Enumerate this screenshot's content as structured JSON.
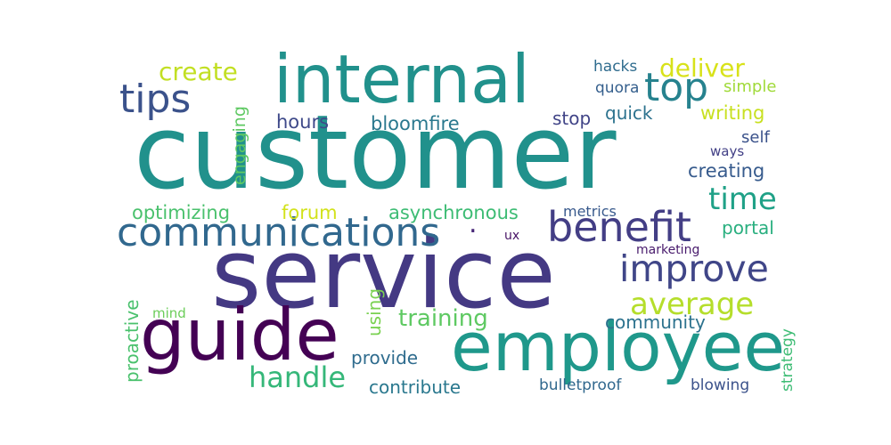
{
  "colors": {
    "background": "#ffffff",
    "palette": [
      "#440154",
      "#3b528b",
      "#21918c",
      "#5ec962",
      "#fde725"
    ]
  },
  "words": [
    {
      "text": "customer",
      "color": "#21918c"
    },
    {
      "text": "service",
      "color": "#443983"
    },
    {
      "text": "internal",
      "color": "#21918c"
    },
    {
      "text": "employee",
      "color": "#1f988b"
    },
    {
      "text": "guide",
      "color": "#440154"
    },
    {
      "text": "communications",
      "color": "#31688e"
    },
    {
      "text": "benefit",
      "color": "#433e85"
    },
    {
      "text": "improve",
      "color": "#404688"
    },
    {
      "text": "tips",
      "color": "#3b528b"
    },
    {
      "text": "top",
      "color": "#26828e"
    },
    {
      "text": "average",
      "color": "#b5de2b"
    },
    {
      "text": "time",
      "color": "#1fa187"
    },
    {
      "text": "create",
      "color": "#c2df23"
    },
    {
      "text": "deliver",
      "color": "#d8e219"
    },
    {
      "text": "handle",
      "color": "#35b779"
    },
    {
      "text": "training",
      "color": "#5ec962"
    },
    {
      "text": "optimizing",
      "color": "#4ac16d"
    },
    {
      "text": "forum",
      "color": "#d2e21b"
    },
    {
      "text": "asynchronous",
      "color": "#3dbc74"
    },
    {
      "text": "hours",
      "color": "#3e4989"
    },
    {
      "text": "bloomfire",
      "color": "#2a788e"
    },
    {
      "text": "stop",
      "color": "#414487"
    },
    {
      "text": "quick",
      "color": "#2c728e"
    },
    {
      "text": "writing",
      "color": "#c8e020"
    },
    {
      "text": "simple",
      "color": "#a0da39"
    },
    {
      "text": "hacks",
      "color": "#2f6c8e"
    },
    {
      "text": "quora",
      "color": "#355f8d"
    },
    {
      "text": "self",
      "color": "#3b528b"
    },
    {
      "text": "ways",
      "color": "#424086"
    },
    {
      "text": "creating",
      "color": "#375b8d"
    },
    {
      "text": "portal",
      "color": "#29af7f"
    },
    {
      "text": "metrics",
      "color": "#38598c"
    },
    {
      "text": "ux",
      "color": "#471365"
    },
    {
      "text": "marketing",
      "color": "#481a6c"
    },
    {
      "text": "community",
      "color": "#2c728e"
    },
    {
      "text": "provide",
      "color": "#2f6c8e"
    },
    {
      "text": "contribute",
      "color": "#2a788e"
    },
    {
      "text": "bulletproof",
      "color": "#31688e"
    },
    {
      "text": "blowing",
      "color": "#3b528b"
    },
    {
      "text": "mind",
      "color": "#6ccd5a"
    },
    {
      "text": "engaging",
      "color": "#5ec962"
    },
    {
      "text": "proactive",
      "color": "#4ac16d"
    },
    {
      "text": "using",
      "color": "#7ad151"
    },
    {
      "text": "strategy",
      "color": "#3dbc74"
    },
    {
      "text": ".",
      "color": "#482878"
    }
  ]
}
